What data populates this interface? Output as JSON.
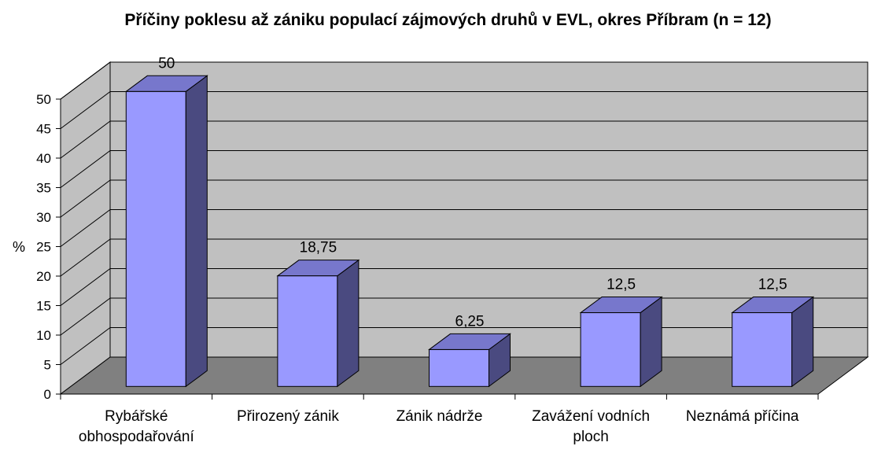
{
  "chart_data": {
    "type": "bar",
    "title": "Příčiny poklesu až zániku populací zájmových druhů v EVL, okres Příbram (n = 12)",
    "ylabel": "%",
    "xlabel": "",
    "ylim": [
      0,
      50
    ],
    "yticks": [
      "0",
      "5",
      "10",
      "15",
      "20",
      "25",
      "30",
      "35",
      "40",
      "45",
      "50"
    ],
    "categories": [
      [
        "Rybářské",
        "obhospodařování"
      ],
      [
        "Přirozený zánik"
      ],
      [
        "Zánik nádrže"
      ],
      [
        "Zavážení vodních",
        "ploch"
      ],
      [
        "Neznámá příčina"
      ]
    ],
    "values": [
      50,
      18.75,
      6.25,
      12.5,
      12.5
    ],
    "data_labels": [
      "50",
      "18,75",
      "6,25",
      "12,5",
      "12,5"
    ],
    "grid": true,
    "legend": "none",
    "colors": {
      "bar_front": "#9999ff",
      "bar_top": "#7777cc",
      "bar_side": "#4a4a80",
      "wall": "#c0c0c0",
      "floor": "#808080"
    }
  }
}
